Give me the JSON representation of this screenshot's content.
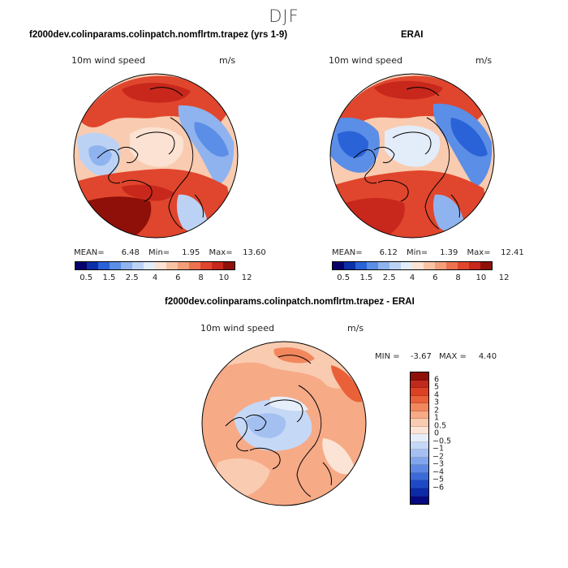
{
  "season": "DJF",
  "colors": {
    "abs_scale": [
      "#08006b",
      "#0a2fa6",
      "#2a62d8",
      "#5b8ee6",
      "#8fb3ef",
      "#bcd2f5",
      "#e3ecf9",
      "#fbe2d2",
      "#f8c3a5",
      "#f39f7a",
      "#ec7150",
      "#e0462d",
      "#c8271c",
      "#8f1009"
    ],
    "diff_scale": [
      "#8f1009",
      "#c02a1c",
      "#dc4125",
      "#ea6038",
      "#f2875e",
      "#f6aa86",
      "#f9cbb0",
      "#fbe4d6",
      "#e6eefa",
      "#c5d8f6",
      "#a3c0f1",
      "#82a6eb",
      "#5f88e4",
      "#3d6ad9",
      "#1e49c6",
      "#0d2aa8",
      "#050a80"
    ],
    "land_line": "#000000"
  },
  "panels": [
    {
      "id": "model",
      "title": "f2000dev.colinparams.colinpatch.nomflrtm.trapez (yrs 1-9)",
      "variable": "10m wind speed",
      "units": "m/s",
      "stats": {
        "mean_label": "MEAN=",
        "mean": "6.48",
        "min_label": "Min=",
        "min": "1.95",
        "max_label": "Max=",
        "max": "13.60"
      }
    },
    {
      "id": "obs",
      "title": "ERAI",
      "variable": "10m wind speed",
      "units": "m/s",
      "stats": {
        "mean_label": "MEAN=",
        "mean": "6.12",
        "min_label": "Min=",
        "min": "1.39",
        "max_label": "Max=",
        "max": "12.41"
      }
    },
    {
      "id": "diff",
      "title": "f2000dev.colinparams.colinpatch.nomflrtm.trapez - ERAI",
      "variable": "10m wind speed",
      "units": "m/s",
      "stats": {
        "min_label": "MIN =",
        "min": "-3.67",
        "max_label": "MAX =",
        "max": "4.40"
      }
    }
  ],
  "chart_data": [
    {
      "type": "heatmap",
      "projection": "north polar stereographic",
      "title": "f2000dev.colinparams.colinpatch.nomflrtm.trapez (yrs 1-9)",
      "field": "10m wind speed",
      "units": "m/s",
      "mean": 6.48,
      "min": 1.95,
      "max": 13.6,
      "colorbar_levels": [
        0.5,
        1,
        1.5,
        2,
        2.5,
        3,
        4,
        5,
        6,
        7,
        8,
        9,
        10,
        11,
        12
      ],
      "colorbar_tick_labels": [
        "0.5",
        "1.5",
        "2.5",
        "4",
        "6",
        "8",
        "10",
        "12"
      ]
    },
    {
      "type": "heatmap",
      "projection": "north polar stereographic",
      "title": "ERAI",
      "field": "10m wind speed",
      "units": "m/s",
      "mean": 6.12,
      "min": 1.39,
      "max": 12.41,
      "colorbar_levels": [
        0.5,
        1,
        1.5,
        2,
        2.5,
        3,
        4,
        5,
        6,
        7,
        8,
        9,
        10,
        11,
        12
      ],
      "colorbar_tick_labels": [
        "0.5",
        "1.5",
        "2.5",
        "4",
        "6",
        "8",
        "10",
        "12"
      ]
    },
    {
      "type": "heatmap",
      "projection": "north polar stereographic",
      "title": "f2000dev.colinparams.colinpatch.nomflrtm.trapez - ERAI",
      "field": "10m wind speed",
      "units": "m/s",
      "min": -3.67,
      "max": 4.4,
      "colorbar_levels": [
        6,
        5,
        4,
        3,
        2,
        1,
        0.5,
        0,
        -0.5,
        -1,
        -2,
        -3,
        -4,
        -5,
        -6
      ],
      "colorbar_tick_labels": [
        "6",
        "5",
        "4",
        "3",
        "2",
        "1",
        "0.5",
        "0",
        "−0.5",
        "−1",
        "−2",
        "−3",
        "−4",
        "−5",
        "−6"
      ]
    }
  ]
}
